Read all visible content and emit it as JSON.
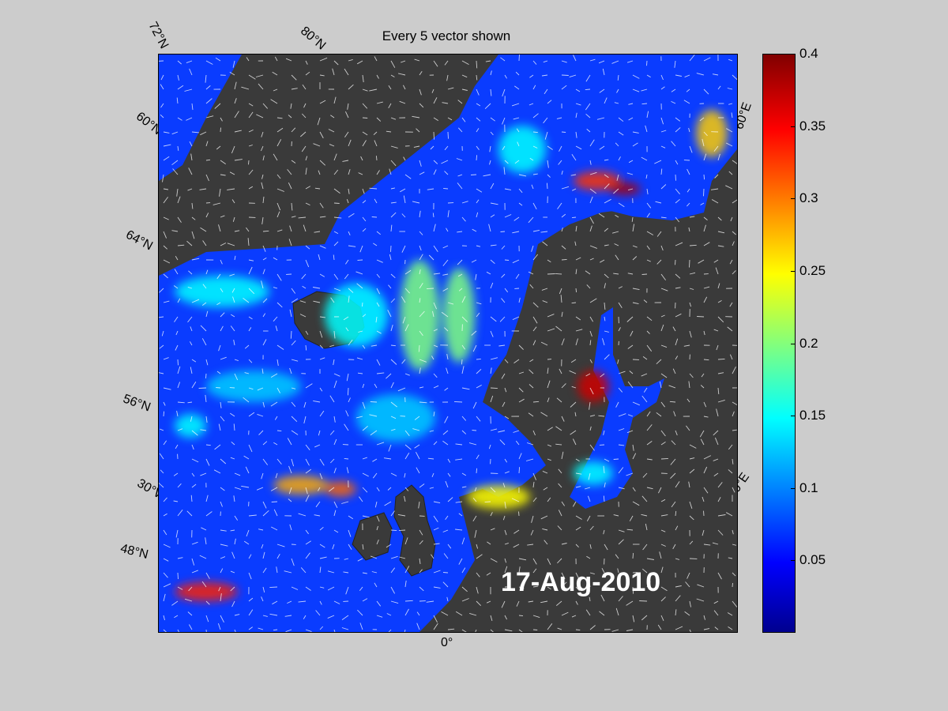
{
  "title": "Every 5 vector shown",
  "date_label": "17-Aug-2010",
  "grid_labels": {
    "lat_72": "72°N",
    "lat_80": "80°N",
    "lat_60": "60°N",
    "lat_64": "64°N",
    "lat_56": "56°N",
    "lat_48": "48°N",
    "lon_30w": "30°W",
    "lon_0": "0°",
    "lon_30e": "30°E",
    "lon_60e": "60°E"
  },
  "colorbar": {
    "ticks": [
      "0.4",
      "0.35",
      "0.3",
      "0.25",
      "0.2",
      "0.15",
      "0.1",
      "0.05"
    ],
    "min": 0,
    "max": 0.4,
    "colormap": "jet"
  },
  "colors": {
    "background": "#cccccc",
    "land": "#3a3a3a",
    "ocean_low": "#0000ff",
    "vectors": "#ffffff"
  }
}
